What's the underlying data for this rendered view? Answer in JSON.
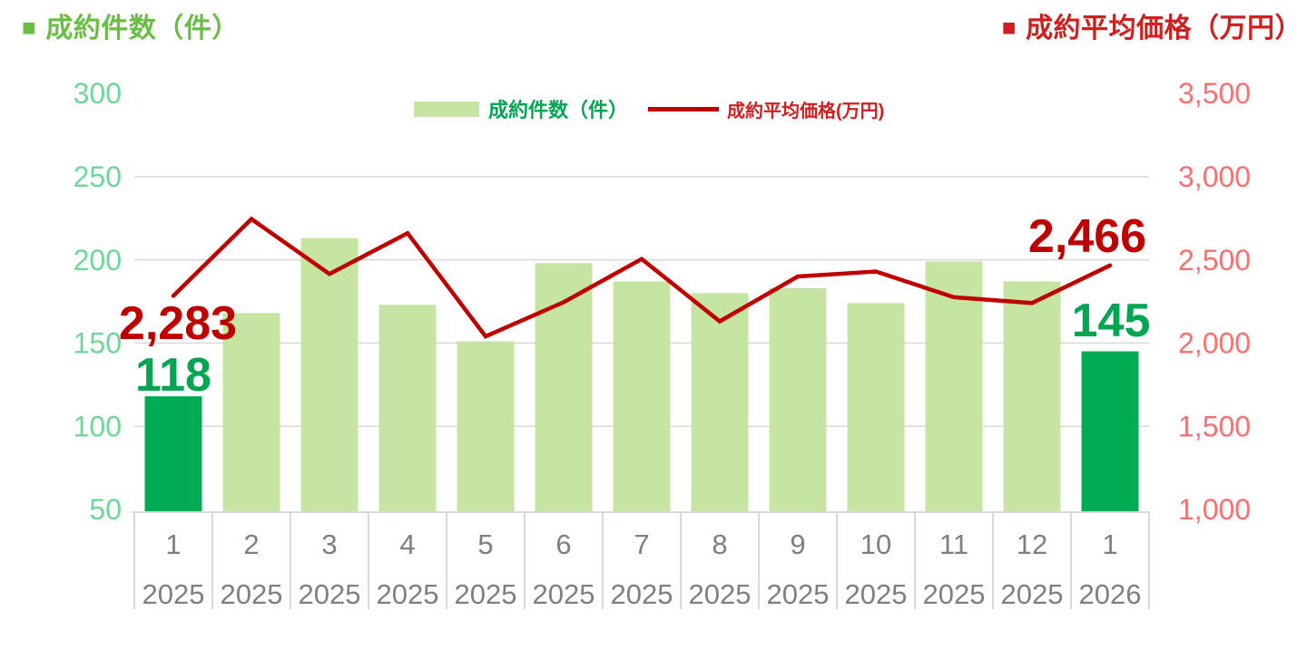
{
  "titles": {
    "marker": "■",
    "left": "成約件数（件）",
    "right": "成約平均価格（万円）"
  },
  "legend": {
    "bars": "成約件数（件）",
    "line": "成約平均価格(万円)"
  },
  "chart_data": {
    "type": "bar+line combo, dual axis",
    "categories": [
      {
        "month": "1",
        "year": "2025"
      },
      {
        "month": "2",
        "year": "2025"
      },
      {
        "month": "3",
        "year": "2025"
      },
      {
        "month": "4",
        "year": "2025"
      },
      {
        "month": "5",
        "year": "2025"
      },
      {
        "month": "6",
        "year": "2025"
      },
      {
        "month": "7",
        "year": "2025"
      },
      {
        "month": "8",
        "year": "2025"
      },
      {
        "month": "9",
        "year": "2025"
      },
      {
        "month": "10",
        "year": "2025"
      },
      {
        "month": "11",
        "year": "2025"
      },
      {
        "month": "12",
        "year": "2025"
      },
      {
        "month": "1",
        "year": "2026"
      }
    ],
    "series": [
      {
        "name": "成約件数（件）",
        "type": "bar",
        "axis": "left",
        "values": [
          118,
          168,
          213,
          173,
          151,
          198,
          187,
          180,
          183,
          174,
          199,
          187,
          145
        ],
        "highlighted_indices": [
          0,
          12
        ]
      },
      {
        "name": "成約平均価格(万円)",
        "type": "line",
        "axis": "right",
        "values": [
          2283,
          2745,
          2415,
          2660,
          2040,
          2245,
          2505,
          2130,
          2400,
          2430,
          2275,
          2240,
          2466
        ]
      }
    ],
    "left_axis": {
      "label": "成約件数（件）",
      "min": 50,
      "max": 300,
      "tick_labels": [
        "300",
        "250",
        "200",
        "150",
        "100",
        "50"
      ],
      "tick_values": [
        300,
        250,
        200,
        150,
        100,
        50
      ]
    },
    "right_axis": {
      "label": "成約平均価格（万円）",
      "min": 1000,
      "max": 3500,
      "tick_labels": [
        "3,500",
        "3,000",
        "2,500",
        "2,000",
        "1,500",
        "1,000"
      ],
      "tick_values": [
        3500,
        3000,
        2500,
        2000,
        1500,
        1000
      ]
    },
    "gridline_values_left": [
      250,
      200,
      150,
      100
    ],
    "annotations": [
      {
        "target_index": 0,
        "price_label": "2,283",
        "count_label": "118"
      },
      {
        "target_index": 12,
        "price_label": "2,466",
        "count_label": "145"
      }
    ],
    "legend_position": "top-center",
    "grid": true
  },
  "colors": {
    "bar_light": "#C7E5A2",
    "bar_dark": "#00AB54",
    "line": "#C00000",
    "left_axis_text": "#6FD69B",
    "right_axis_text": "#F87070",
    "x_axis_text": "#7F7F7F",
    "gridline": "#D9D9D9",
    "price_label": "#C00000",
    "count_label": "#00A651"
  }
}
